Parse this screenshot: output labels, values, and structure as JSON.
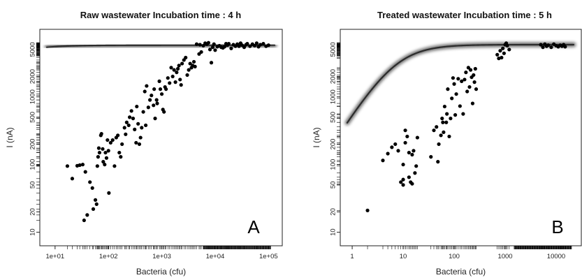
{
  "chart_data": [
    {
      "type": "scatter",
      "panel_letter": "A",
      "title": "Raw wastewater  Incubation time : 4 h",
      "xlabel": "Bacteria (cfu)",
      "ylabel": "I (nA)",
      "xscale": "log",
      "yscale": "log",
      "xlim": [
        7,
        130000
      ],
      "ylim": [
        8,
        6800
      ],
      "xticks": [
        10,
        100,
        1000,
        10000,
        100000
      ],
      "xtick_labels": [
        "1e+01",
        "1e+02",
        "1e+03",
        "1e+04",
        "1e+05"
      ],
      "yticks": [
        10,
        20,
        50,
        100,
        200,
        500,
        1000,
        2000,
        5000
      ],
      "ytick_labels": [
        "10",
        "20",
        "50",
        "100",
        "200",
        "500",
        "1000",
        "2000",
        "5000"
      ],
      "fit_curve": {
        "ymax": 5800,
        "k": 1.7,
        "n": 1.05
      },
      "rug": {
        "x_dense_from": 6000,
        "x_to": 110000,
        "y_dense_from": 4000
      },
      "points": [
        [
          17,
          95
        ],
        [
          21,
          62
        ],
        [
          26,
          96
        ],
        [
          29,
          98
        ],
        [
          33,
          100
        ],
        [
          35,
          15
        ],
        [
          37,
          78
        ],
        [
          40,
          18
        ],
        [
          45,
          55
        ],
        [
          50,
          45
        ],
        [
          52,
          22
        ],
        [
          57,
          30
        ],
        [
          60,
          26
        ],
        [
          62,
          95
        ],
        [
          64,
          130
        ],
        [
          66,
          175
        ],
        [
          68,
          150
        ],
        [
          72,
          270
        ],
        [
          74,
          285
        ],
        [
          78,
          170
        ],
        [
          80,
          110
        ],
        [
          85,
          100
        ],
        [
          88,
          150
        ],
        [
          92,
          125
        ],
        [
          96,
          230
        ],
        [
          100,
          160
        ],
        [
          102,
          38
        ],
        [
          110,
          210
        ],
        [
          120,
          230
        ],
        [
          130,
          95
        ],
        [
          140,
          250
        ],
        [
          150,
          270
        ],
        [
          160,
          150
        ],
        [
          170,
          130
        ],
        [
          180,
          200
        ],
        [
          200,
          350
        ],
        [
          210,
          280
        ],
        [
          220,
          420
        ],
        [
          240,
          380
        ],
        [
          250,
          500
        ],
        [
          270,
          620
        ],
        [
          290,
          480
        ],
        [
          310,
          330
        ],
        [
          330,
          210
        ],
        [
          340,
          720
        ],
        [
          360,
          400
        ],
        [
          380,
          200
        ],
        [
          400,
          250
        ],
        [
          420,
          350
        ],
        [
          450,
          600
        ],
        [
          480,
          1200
        ],
        [
          500,
          380
        ],
        [
          520,
          1450
        ],
        [
          560,
          700
        ],
        [
          600,
          900
        ],
        [
          640,
          1050
        ],
        [
          700,
          750
        ],
        [
          720,
          1300
        ],
        [
          750,
          480
        ],
        [
          800,
          900
        ],
        [
          820,
          800
        ],
        [
          900,
          1700
        ],
        [
          940,
          1300
        ],
        [
          1000,
          1100
        ],
        [
          1050,
          650
        ],
        [
          1100,
          600
        ],
        [
          1150,
          1400
        ],
        [
          1200,
          1300
        ],
        [
          1300,
          1900
        ],
        [
          1400,
          1600
        ],
        [
          1500,
          2700
        ],
        [
          1600,
          2000
        ],
        [
          1700,
          2500
        ],
        [
          1800,
          1650
        ],
        [
          1900,
          2300
        ],
        [
          2000,
          2600
        ],
        [
          2100,
          2900
        ],
        [
          2200,
          1800
        ],
        [
          2300,
          1500
        ],
        [
          2400,
          3100
        ],
        [
          2600,
          3500
        ],
        [
          2800,
          3800
        ],
        [
          3000,
          2100
        ],
        [
          3200,
          2500
        ],
        [
          3400,
          3100
        ],
        [
          3600,
          2700
        ],
        [
          3800,
          2900
        ],
        [
          4000,
          3300
        ],
        [
          4200,
          2800
        ],
        [
          4500,
          6000
        ],
        [
          5000,
          4300
        ],
        [
          5200,
          5900
        ],
        [
          5500,
          4600
        ],
        [
          6000,
          5700
        ],
        [
          6500,
          6200
        ],
        [
          7000,
          6000
        ],
        [
          7500,
          6300
        ],
        [
          8000,
          5000
        ],
        [
          8500,
          3200
        ],
        [
          9000,
          5400
        ],
        [
          9500,
          6000
        ],
        [
          10000,
          4900
        ],
        [
          11000,
          5500
        ],
        [
          12000,
          5700
        ],
        [
          13000,
          5400
        ],
        [
          14000,
          5300
        ],
        [
          15000,
          5500
        ],
        [
          16000,
          6100
        ],
        [
          17000,
          5800
        ],
        [
          18000,
          6100
        ],
        [
          20000,
          5200
        ],
        [
          22000,
          5900
        ],
        [
          24000,
          5600
        ],
        [
          26000,
          6000
        ],
        [
          28000,
          5600
        ],
        [
          30000,
          6200
        ],
        [
          32000,
          5800
        ],
        [
          35000,
          5400
        ],
        [
          38000,
          5900
        ],
        [
          40000,
          6100
        ],
        [
          45000,
          5600
        ],
        [
          50000,
          6000
        ],
        [
          55000,
          5700
        ],
        [
          60000,
          6200
        ],
        [
          65000,
          5500
        ],
        [
          70000,
          5900
        ],
        [
          80000,
          6100
        ],
        [
          90000,
          5600
        ],
        [
          100000,
          5800
        ]
      ]
    },
    {
      "type": "scatter",
      "panel_letter": "B",
      "title": "Treated wastewater  Incubation time : 5 h",
      "xlabel": "Bacteria (cfu)",
      "ylabel": "I (nA)",
      "xscale": "log",
      "yscale": "log",
      "xlim": [
        0.8,
        22000
      ],
      "ylim": [
        8,
        6800
      ],
      "xticks": [
        1,
        10,
        100,
        1000,
        10000
      ],
      "xtick_labels": [
        "1",
        "10",
        "100",
        "1000",
        "10000"
      ],
      "yticks": [
        10,
        20,
        50,
        100,
        200,
        500,
        1000,
        2000,
        5000
      ],
      "ytick_labels": [
        "10",
        "20",
        "50",
        "100",
        "200",
        "500",
        "1000",
        "2000",
        "5000"
      ],
      "fit_curve": {
        "ymax": 5900,
        "k": 0.14,
        "n": 1.18
      },
      "rug": {
        "x_dense_from": 1500,
        "x_to": 20000,
        "y_dense_from": 4000
      },
      "points": [
        [
          2,
          21
        ],
        [
          4,
          115
        ],
        [
          5,
          145
        ],
        [
          6,
          180
        ],
        [
          7,
          200
        ],
        [
          8,
          160
        ],
        [
          9,
          55
        ],
        [
          10,
          50
        ],
        [
          10,
          100
        ],
        [
          10,
          60
        ],
        [
          11,
          210
        ],
        [
          11,
          320
        ],
        [
          12,
          260
        ],
        [
          13,
          65
        ],
        [
          13,
          150
        ],
        [
          14,
          55
        ],
        [
          15,
          52
        ],
        [
          15,
          140
        ],
        [
          16,
          160
        ],
        [
          17,
          75
        ],
        [
          18,
          95
        ],
        [
          19,
          250
        ],
        [
          35,
          130
        ],
        [
          40,
          320
        ],
        [
          45,
          360
        ],
        [
          48,
          110
        ],
        [
          50,
          200
        ],
        [
          55,
          270
        ],
        [
          58,
          480
        ],
        [
          60,
          420
        ],
        [
          62,
          300
        ],
        [
          65,
          720
        ],
        [
          70,
          420
        ],
        [
          72,
          560
        ],
        [
          75,
          1300
        ],
        [
          80,
          260
        ],
        [
          85,
          480
        ],
        [
          90,
          950
        ],
        [
          95,
          1900
        ],
        [
          100,
          1550
        ],
        [
          105,
          540
        ],
        [
          110,
          1100
        ],
        [
          120,
          1850
        ],
        [
          130,
          730
        ],
        [
          140,
          1700
        ],
        [
          150,
          560
        ],
        [
          160,
          1800
        ],
        [
          170,
          2300
        ],
        [
          180,
          1200
        ],
        [
          190,
          2700
        ],
        [
          200,
          1400
        ],
        [
          210,
          2500
        ],
        [
          220,
          1950
        ],
        [
          230,
          800
        ],
        [
          240,
          2100
        ],
        [
          250,
          1650
        ],
        [
          260,
          2600
        ],
        [
          270,
          1300
        ],
        [
          700,
          4200
        ],
        [
          750,
          3700
        ],
        [
          800,
          4800
        ],
        [
          850,
          3800
        ],
        [
          900,
          5200
        ],
        [
          950,
          4400
        ],
        [
          1000,
          5900
        ],
        [
          1050,
          6200
        ],
        [
          1100,
          5700
        ],
        [
          1200,
          5000
        ],
        [
          5000,
          5900
        ],
        [
          5500,
          5400
        ],
        [
          6000,
          6000
        ],
        [
          6500,
          5600
        ],
        [
          7000,
          5800
        ],
        [
          8000,
          5400
        ],
        [
          9000,
          6000
        ],
        [
          10000,
          5700
        ],
        [
          11000,
          5500
        ],
        [
          12000,
          5800
        ],
        [
          13000,
          5600
        ],
        [
          14000,
          5900
        ],
        [
          15000,
          5500
        ]
      ]
    }
  ]
}
